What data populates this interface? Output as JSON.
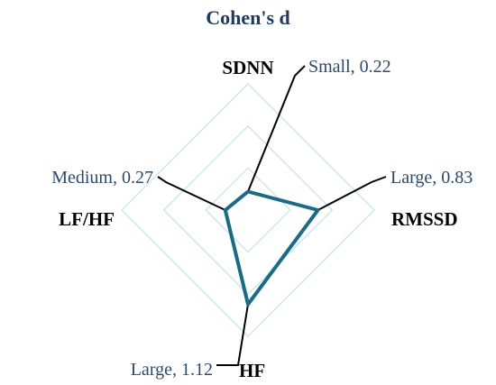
{
  "chart_data": {
    "type": "radar",
    "title": "Cohen's d",
    "categories": [
      "SDNN",
      "RMSSD",
      "HF",
      "LF/HF"
    ],
    "series": [
      {
        "values": [
          0.22,
          0.83,
          1.12,
          0.27
        ]
      }
    ],
    "annotations": [
      {
        "category": "SDNN",
        "text": "Small, 0.22"
      },
      {
        "category": "RMSSD",
        "text": "Large, 0.83"
      },
      {
        "category": "HF",
        "text": "Large, 1.12"
      },
      {
        "category": "LF/HF",
        "text": "Medium, 0.27"
      }
    ],
    "rlim": [
      0,
      1.5
    ],
    "grid": true,
    "legend": "none"
  },
  "colors": {
    "series": "#1b6a86",
    "grid": "#bfe3ee",
    "title": "#1f3a5f",
    "annotation": "#2c4a6b"
  }
}
